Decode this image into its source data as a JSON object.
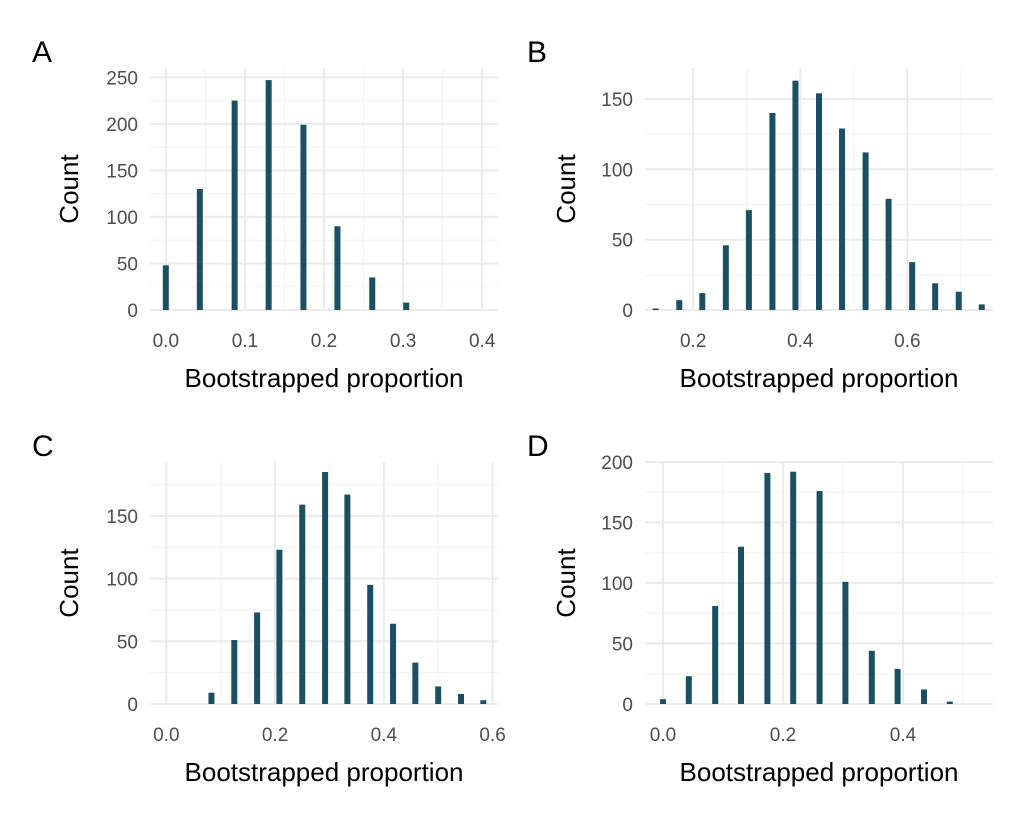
{
  "chart_data": [
    {
      "panel": "A",
      "type": "bar",
      "xlabel": "Bootstrapped proportion",
      "ylabel": "Count",
      "xlim": [
        -0.02,
        0.42
      ],
      "ylim": [
        0,
        260
      ],
      "x_ticks": [
        0.0,
        0.1,
        0.2,
        0.3,
        0.4
      ],
      "x_tick_labels": [
        "0.0",
        "0.1",
        "0.2",
        "0.3",
        "0.4"
      ],
      "y_ticks": [
        0,
        50,
        100,
        150,
        200,
        250
      ],
      "y_tick_labels": [
        "0",
        "50",
        "100",
        "150",
        "200",
        "250"
      ],
      "grid": true,
      "x": [
        0.0,
        0.043,
        0.087,
        0.13,
        0.174,
        0.217,
        0.261,
        0.304
      ],
      "values": [
        48,
        130,
        225,
        247,
        199,
        90,
        35,
        8
      ]
    },
    {
      "panel": "B",
      "type": "bar",
      "xlabel": "Bootstrapped proportion",
      "ylabel": "Count",
      "xlim": [
        0.11,
        0.76
      ],
      "ylim": [
        0,
        172
      ],
      "x_ticks": [
        0.2,
        0.4,
        0.6
      ],
      "x_tick_labels": [
        "0.2",
        "0.4",
        "0.6"
      ],
      "y_ticks": [
        0,
        50,
        100,
        150
      ],
      "y_tick_labels": [
        "0",
        "50",
        "100",
        "150"
      ],
      "grid": true,
      "x": [
        0.13,
        0.174,
        0.217,
        0.261,
        0.304,
        0.348,
        0.391,
        0.435,
        0.478,
        0.522,
        0.565,
        0.609,
        0.652,
        0.696,
        0.739
      ],
      "values": [
        1,
        7,
        12,
        46,
        71,
        140,
        163,
        154,
        129,
        112,
        79,
        34,
        19,
        13,
        4
      ]
    },
    {
      "panel": "C",
      "type": "bar",
      "xlabel": "Bootstrapped proportion",
      "ylabel": "Count",
      "xlim": [
        -0.03,
        0.61
      ],
      "ylim": [
        0,
        193
      ],
      "x_ticks": [
        0.0,
        0.2,
        0.4,
        0.6
      ],
      "x_tick_labels": [
        "0.0",
        "0.2",
        "0.4",
        "0.6"
      ],
      "y_ticks": [
        0,
        50,
        100,
        150
      ],
      "y_tick_labels": [
        "0",
        "50",
        "100",
        "150"
      ],
      "grid": true,
      "x": [
        0.0,
        0.042,
        0.083,
        0.125,
        0.167,
        0.208,
        0.25,
        0.292,
        0.333,
        0.375,
        0.417,
        0.458,
        0.5,
        0.542,
        0.583
      ],
      "values": [
        0,
        0,
        9,
        51,
        73,
        123,
        159,
        185,
        167,
        95,
        64,
        33,
        14,
        8,
        3
      ]
    },
    {
      "panel": "D",
      "type": "bar",
      "xlabel": "Bootstrapped proportion",
      "ylabel": "Count",
      "xlim": [
        -0.03,
        0.55
      ],
      "ylim": [
        0,
        200
      ],
      "x_ticks": [
        0.0,
        0.2,
        0.4
      ],
      "x_tick_labels": [
        "0.0",
        "0.2",
        "0.4"
      ],
      "y_ticks": [
        0,
        50,
        100,
        150,
        200
      ],
      "y_tick_labels": [
        "0",
        "50",
        "100",
        "150",
        "200"
      ],
      "grid": true,
      "x": [
        0.0,
        0.043,
        0.087,
        0.13,
        0.174,
        0.217,
        0.261,
        0.304,
        0.348,
        0.391,
        0.435,
        0.478,
        0.522
      ],
      "values": [
        4,
        23,
        81,
        130,
        191,
        192,
        176,
        101,
        44,
        29,
        12,
        2,
        0
      ]
    }
  ]
}
